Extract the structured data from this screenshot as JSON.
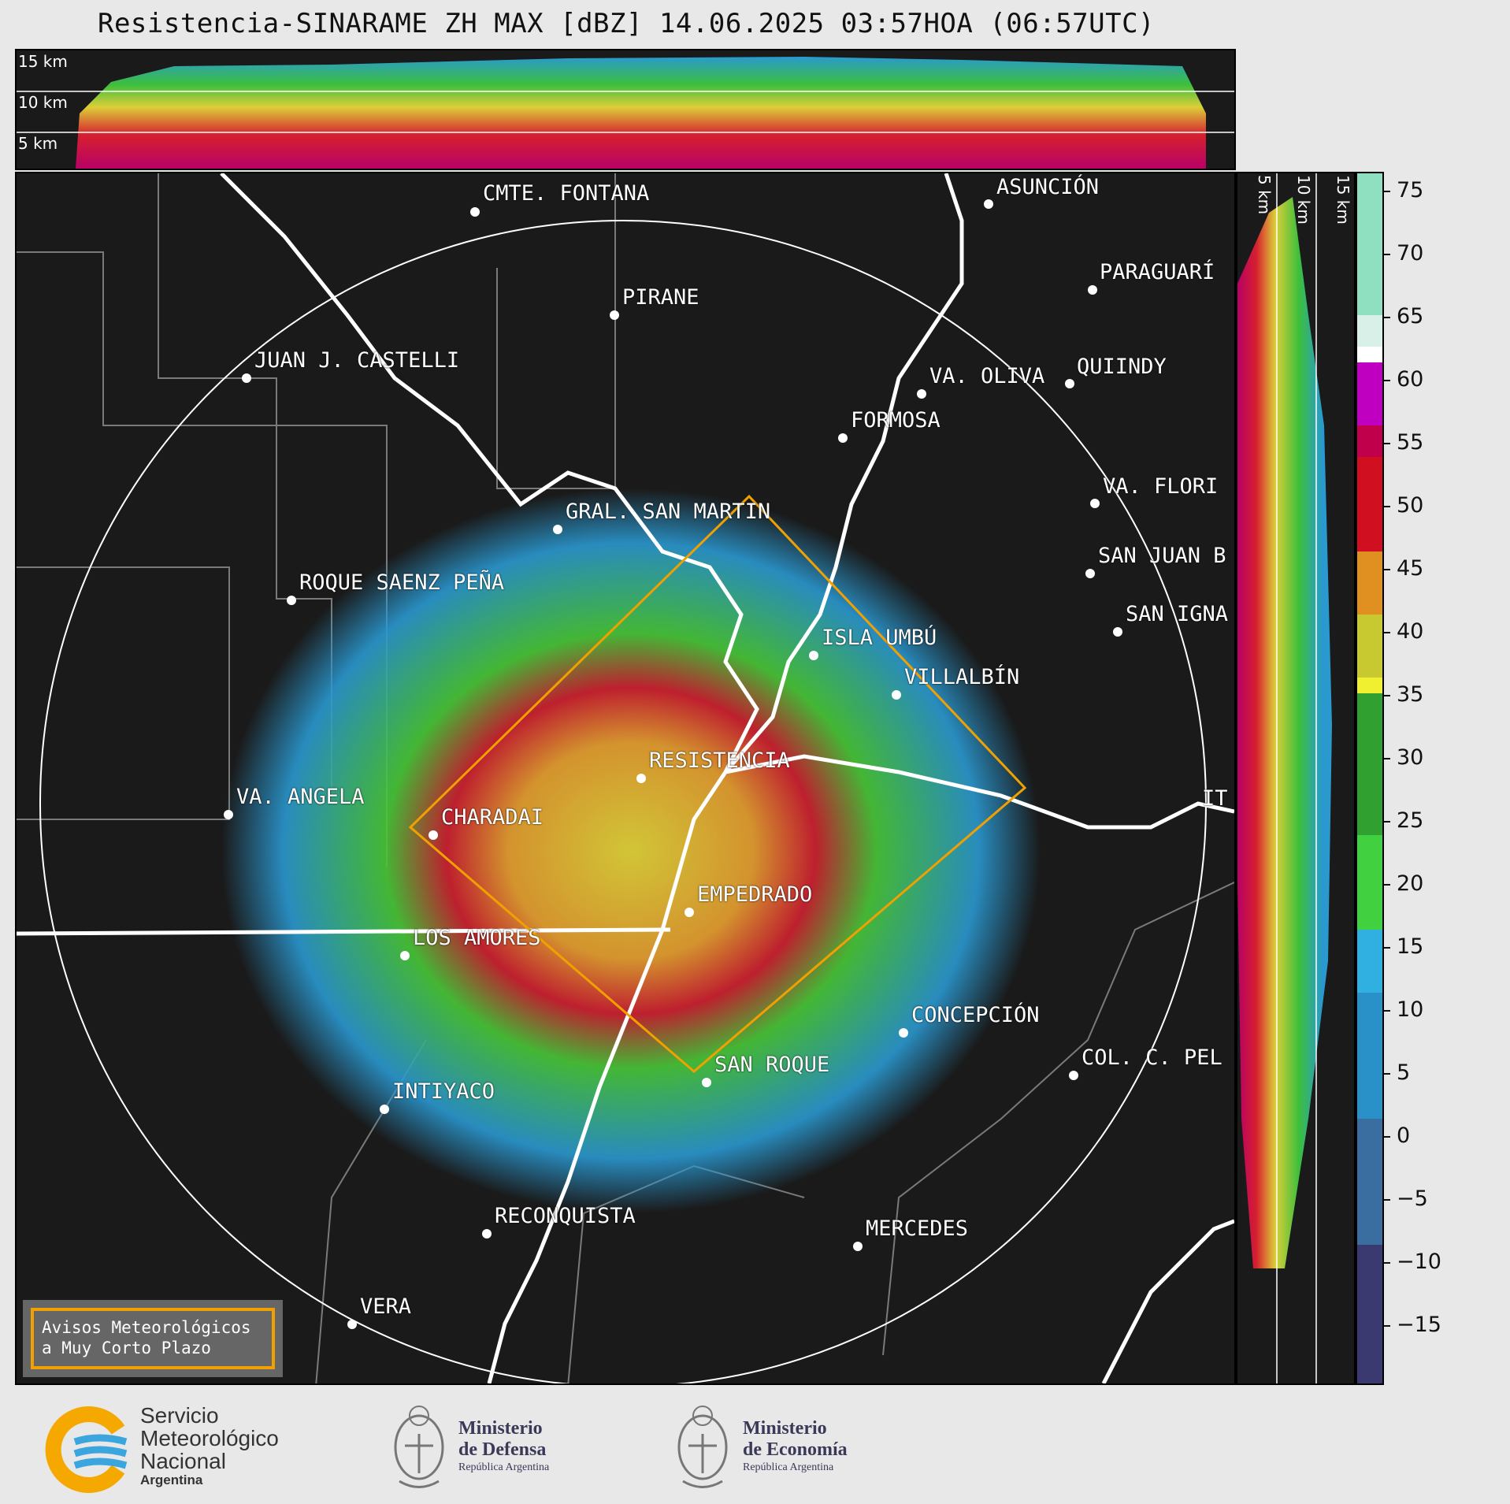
{
  "title": "Resistencia-SINARAME ZH MAX [dBZ] 14.06.2025 03:57HOA (06:57UTC)",
  "profile_labels": {
    "h15": "15 km",
    "h10": "10 km",
    "h5": "5 km"
  },
  "colorbar": {
    "ticks": [
      "75",
      "70",
      "65",
      "60",
      "55",
      "50",
      "45",
      "40",
      "35",
      "30",
      "25",
      "20",
      "15",
      "10",
      "5",
      "0",
      "−5",
      "−10",
      "−15"
    ]
  },
  "cities": [
    {
      "name": "CMTE. FONTANA"
    },
    {
      "name": "ASUNCIÓN"
    },
    {
      "name": "PIRANE"
    },
    {
      "name": "PARAGUARÍ"
    },
    {
      "name": "JUAN J. CASTELLI"
    },
    {
      "name": "VA. OLIVA"
    },
    {
      "name": "QUIINDY"
    },
    {
      "name": "FORMOSA"
    },
    {
      "name": "VA. FLORI"
    },
    {
      "name": "GRAL. SAN MARTIN"
    },
    {
      "name": "SAN JUAN B"
    },
    {
      "name": "ROQUE SAENZ PEÑA"
    },
    {
      "name": "SAN IGNA"
    },
    {
      "name": "ISLA UMBÚ"
    },
    {
      "name": "VILLALBÍN"
    },
    {
      "name": "RESISTENCIA"
    },
    {
      "name": "VA. ANGELA"
    },
    {
      "name": "CHARADAI"
    },
    {
      "name": "IT"
    },
    {
      "name": "EMPEDRADO"
    },
    {
      "name": "LOS AMORES"
    },
    {
      "name": "CONCEPCIÓN"
    },
    {
      "name": "COL. C. PEL"
    },
    {
      "name": "SAN ROQUE"
    },
    {
      "name": "INTIYACO"
    },
    {
      "name": "RECONQUISTA"
    },
    {
      "name": "MERCEDES"
    },
    {
      "name": "VERA"
    }
  ],
  "warning_box": {
    "line1": "Avisos Meteorológicos",
    "line2": "a Muy Corto Plazo"
  },
  "footer": {
    "smn": {
      "line1": "Servicio",
      "line2": "Meteorológico",
      "line3": "Nacional",
      "line4": "Argentina"
    },
    "defensa": {
      "line1": "Ministerio",
      "line2": "de Defensa",
      "line3": "República Argentina"
    },
    "economia": {
      "line1": "Ministerio",
      "line2": "de Economía",
      "line3": "República Argentina"
    }
  },
  "colors": {
    "background": "#1a1a1a",
    "border_line": "#ffffff",
    "warning_polygon": "#f0a000",
    "smn_orange": "#f5a800",
    "smn_blue": "#3aa6dd"
  }
}
